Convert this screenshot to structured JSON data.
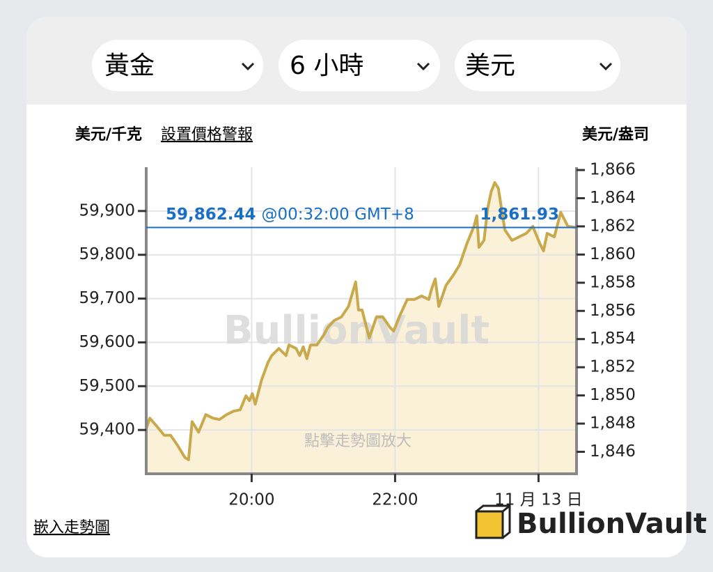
{
  "selectors": [
    "黃金",
    "6 小時",
    "美元"
  ],
  "chart_data": {
    "type": "line",
    "left_unit": "美元/千克",
    "alert_link": "設置價格警報",
    "right_unit": "美元/盎司",
    "x": [
      18.53,
      18.58,
      18.68,
      18.78,
      18.87,
      18.97,
      19.07,
      19.12,
      19.17,
      19.26,
      19.36,
      19.46,
      19.55,
      19.65,
      19.75,
      19.84,
      19.92,
      19.97,
      20.01,
      20.05,
      20.14,
      20.23,
      20.28,
      20.38,
      20.48,
      20.52,
      20.62,
      20.67,
      20.72,
      20.77,
      20.82,
      20.91,
      21.01,
      21.06,
      21.15,
      21.25,
      21.35,
      21.45,
      21.49,
      21.54,
      21.64,
      21.74,
      21.83,
      21.93,
      21.98,
      22.08,
      22.17,
      22.27,
      22.37,
      22.47,
      22.51,
      22.56,
      22.61,
      22.71,
      22.81,
      22.9,
      23.0,
      23.1,
      23.14,
      23.17,
      23.24,
      23.29,
      23.34,
      23.39,
      23.44,
      23.53,
      23.63,
      23.73,
      23.83,
      23.92,
      24.02,
      24.07,
      24.12,
      24.22,
      24.31,
      24.41,
      24.53
    ],
    "series": [
      {
        "color": "#c8a94b",
        "values": [
          59403,
          59427,
          59408,
          59388,
          59388,
          59364,
          59337,
          59332,
          59419,
          59395,
          59435,
          59427,
          59424,
          59435,
          59443,
          59446,
          59478,
          59467,
          59483,
          59459,
          59515,
          59555,
          59570,
          59586,
          59570,
          59594,
          59586,
          59570,
          59590,
          59563,
          59594,
          59594,
          59618,
          59634,
          59650,
          59658,
          59682,
          59738,
          59674,
          59674,
          59610,
          59658,
          59658,
          59634,
          59626,
          59666,
          59698,
          59698,
          59706,
          59698,
          59722,
          59745,
          59682,
          59730,
          59753,
          59777,
          59825,
          59865,
          59889,
          59817,
          59833,
          59905,
          59944,
          59965,
          59952,
          59857,
          59833,
          59841,
          59849,
          59865,
          59825,
          59809,
          59849,
          59841,
          59897,
          59865,
          59862.44
        ]
      }
    ],
    "area_color": "#fbf1d8",
    "xlim": [
      18.53,
      24.53
    ],
    "xticks": [
      {
        "value": 20,
        "label": "20:00"
      },
      {
        "value": 22,
        "label": "22:00"
      },
      {
        "value": 24,
        "label": "11 月 13 日"
      }
    ],
    "ylim": [
      59300,
      60000
    ],
    "yticks": [
      {
        "value": 59400,
        "label": "59,400"
      },
      {
        "value": 59500,
        "label": "59,500"
      },
      {
        "value": 59600,
        "label": "59,600"
      },
      {
        "value": 59700,
        "label": "59,700"
      },
      {
        "value": 59800,
        "label": "59,800"
      },
      {
        "value": 59900,
        "label": "59,900"
      }
    ],
    "y2lim": [
      1844.44,
      1866.2
    ],
    "y2ticks": [
      {
        "value": 1846,
        "label": "1,846"
      },
      {
        "value": 1848,
        "label": "1,848"
      },
      {
        "value": 1850,
        "label": "1,850"
      },
      {
        "value": 1852,
        "label": "1,852"
      },
      {
        "value": 1854,
        "label": "1,854"
      },
      {
        "value": 1856,
        "label": "1,856"
      },
      {
        "value": 1858,
        "label": "1,858"
      },
      {
        "value": 1860,
        "label": "1,860"
      },
      {
        "value": 1862,
        "label": "1,862"
      },
      {
        "value": 1864,
        "label": "1,864"
      },
      {
        "value": 1866,
        "label": "1,866"
      }
    ],
    "grid": true,
    "current": {
      "value": 59862.44,
      "label": "59,862.44",
      "time": "@00:32:00 GMT+8",
      "value_y2": 1861.93,
      "label_y2": "1,861.93",
      "color": "#1a6fc4"
    },
    "watermark": "BullionVault",
    "hint": "點擊走勢圖放大"
  },
  "embed_link": "嵌入走勢圖",
  "logo": "BullionVault"
}
